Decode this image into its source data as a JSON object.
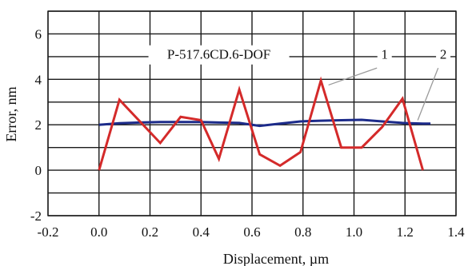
{
  "chart_data": {
    "type": "line",
    "title": "",
    "xlabel": "Displacement, µm",
    "ylabel": "Error, nm",
    "xlim": [
      -0.2,
      1.4
    ],
    "ylim": [
      -2,
      7
    ],
    "x_ticks": [
      -0.2,
      0.0,
      0.2,
      0.4,
      0.6,
      0.8,
      1.0,
      1.2,
      1.4
    ],
    "x_tick_labels": [
      "-0.2",
      "0.0",
      "0.2",
      "0.4",
      "0.6",
      "0.8",
      "1.0",
      "1.2",
      "1.4"
    ],
    "y_ticks": [
      -2,
      0,
      2,
      4,
      6
    ],
    "y_tick_labels": [
      "-2",
      "0",
      "2",
      "4",
      "6"
    ],
    "grid": true,
    "annotations": [
      {
        "text": "P-517.6CD.6-DOF",
        "x": 0.47,
        "y": 4.9
      },
      {
        "text": "1",
        "series": 0,
        "x": 1.12,
        "y": 4.9
      },
      {
        "text": "2",
        "series": 1,
        "x": 1.35,
        "y": 4.9
      }
    ],
    "series": [
      {
        "name": "1",
        "color": "#d42a2a",
        "x": [
          0.0,
          0.08,
          0.24,
          0.32,
          0.4,
          0.47,
          0.55,
          0.63,
          0.71,
          0.79,
          0.87,
          0.95,
          1.03,
          1.11,
          1.19,
          1.27
        ],
        "y": [
          0.0,
          3.1,
          1.2,
          2.35,
          2.2,
          0.5,
          3.55,
          0.7,
          0.2,
          0.8,
          3.95,
          1.0,
          1.0,
          1.9,
          3.15,
          0.0
        ]
      },
      {
        "name": "2",
        "color": "#1c2b8a",
        "x": [
          0.0,
          0.08,
          0.16,
          0.24,
          0.32,
          0.4,
          0.47,
          0.55,
          0.63,
          0.71,
          0.79,
          0.87,
          0.95,
          1.03,
          1.11,
          1.19,
          1.27,
          1.3
        ],
        "y": [
          2.0,
          2.07,
          2.1,
          2.12,
          2.12,
          2.12,
          2.1,
          2.08,
          1.95,
          2.05,
          2.15,
          2.18,
          2.2,
          2.22,
          2.15,
          2.08,
          2.05,
          2.05
        ]
      }
    ]
  }
}
